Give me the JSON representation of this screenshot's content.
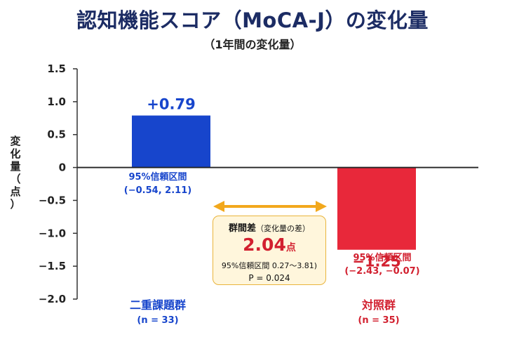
{
  "chart_data": {
    "type": "bar",
    "title": "認知機能スコア（MoCA-J）の変化量",
    "subtitle": "（1年間の変化量）",
    "ylabel_chars": [
      "変",
      "化",
      "量",
      "（",
      "点",
      "）"
    ],
    "ylim": [
      -2.0,
      1.5
    ],
    "yticks": [
      1.5,
      1.0,
      0.5,
      0,
      -0.5,
      -1.0,
      -1.5,
      -2.0
    ],
    "ytick_labels": [
      "1.5",
      "1.0",
      "0.5",
      "0",
      "−0.5",
      "−1.0",
      "−1.5",
      "−2.0"
    ],
    "categories": [
      "二重課題群",
      "対照群"
    ],
    "n_labels": [
      "(n = 33)",
      "(n = 35)"
    ],
    "values": [
      0.79,
      -1.25
    ],
    "value_labels": [
      "+0.79",
      "−1.25"
    ],
    "colors": [
      "#1745cc",
      "#e8283a"
    ],
    "ci_title": "95%信頼区間",
    "ci_values": [
      "(−0.54, 2.11)",
      "(−2.43, −0.07)"
    ],
    "difference": {
      "label": "群間差",
      "label_note": "（変化量の差）",
      "value": "2.04",
      "unit": "点",
      "ci": "95%信頼区間 0.27〜3.81)",
      "p": "P = 0.024",
      "arrow_color": "#f2a81d"
    }
  }
}
